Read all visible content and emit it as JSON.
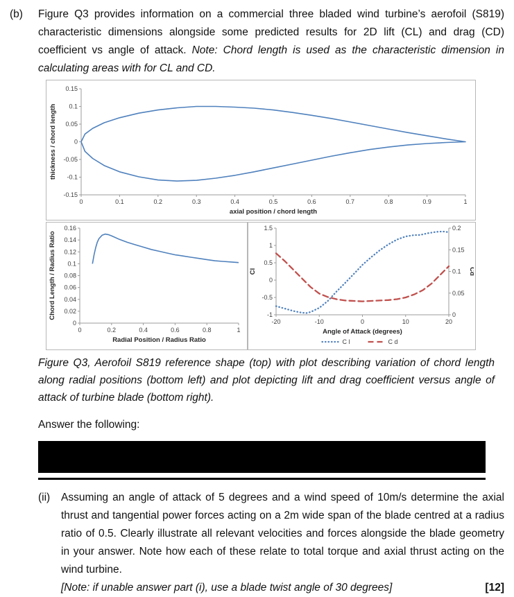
{
  "page": {
    "part_label": "(b)",
    "intro": {
      "normal": "Figure Q3 provides information on a commercial three bladed wind turbine’s aerofoil (S819) characteristic dimensions alongside some predicted results for 2D lift (CL) and drag (CD) coefficient vs angle of attack. ",
      "italic": "Note: Chord length is used as the characteristic dimension in calculating areas with for CL and CD."
    },
    "caption": "Figure Q3, Aerofoil S819 reference shape (top) with plot describing variation of chord length along radial positions (bottom left) and plot depicting lift and drag coefficient versus angle of attack of turbine blade (bottom right).",
    "answer_heading": "Answer the following:",
    "part_ii": {
      "label": "(ii)",
      "body": "Assuming an angle of attack of 5 degrees and a wind speed of 10m/s determine the axial thrust and tangential power forces acting on a 2m wide span of the blade centred at a radius ratio of 0.5. Clearly illustrate all relevant velocities and forces alongside the blade geometry in your answer. Note how each of these relate to total torque and axial thrust acting on the wind turbine.",
      "note_italic": "[Note: if unable answer part (i), use a blade twist angle of 30 degrees]",
      "marks": "[12]"
    }
  },
  "colors": {
    "line_blue": "#4F81BD",
    "line_red": "#C0504D",
    "axis_gray": "#9b9b9b",
    "chart_border": "#b7b7b7"
  },
  "chart_data": [
    {
      "type": "line",
      "title": "",
      "xlabel": "axial position / chord length",
      "ylabel": "thickness / chord length",
      "xlim": [
        0,
        1
      ],
      "ylim": [
        -0.15,
        0.15
      ],
      "xticks": [
        0,
        0.1,
        0.2,
        0.3,
        0.4,
        0.5,
        0.6,
        0.7,
        0.8,
        0.9,
        1
      ],
      "yticks": [
        -0.15,
        -0.1,
        -0.05,
        0,
        0.05,
        0.1,
        0.15
      ],
      "grid": false,
      "series": [
        {
          "name": "S819 aerofoil outline",
          "color": "#4F81BD",
          "style": "solid",
          "x": [
            0,
            0.01,
            0.03,
            0.06,
            0.1,
            0.15,
            0.2,
            0.25,
            0.3,
            0.35,
            0.4,
            0.45,
            0.5,
            0.55,
            0.6,
            0.65,
            0.7,
            0.75,
            0.8,
            0.85,
            0.9,
            0.95,
            1,
            1,
            0.95,
            0.9,
            0.85,
            0.8,
            0.75,
            0.7,
            0.65,
            0.6,
            0.55,
            0.5,
            0.45,
            0.4,
            0.35,
            0.3,
            0.25,
            0.2,
            0.15,
            0.1,
            0.06,
            0.03,
            0.01,
            0
          ],
          "y": [
            0,
            0.022,
            0.038,
            0.054,
            0.068,
            0.081,
            0.09,
            0.096,
            0.1,
            0.1,
            0.098,
            0.095,
            0.09,
            0.083,
            0.075,
            0.066,
            0.056,
            0.046,
            0.036,
            0.026,
            0.017,
            0.008,
            0,
            0,
            -0.002,
            -0.005,
            -0.009,
            -0.015,
            -0.022,
            -0.031,
            -0.041,
            -0.052,
            -0.063,
            -0.074,
            -0.085,
            -0.095,
            -0.103,
            -0.109,
            -0.111,
            -0.108,
            -0.099,
            -0.085,
            -0.067,
            -0.047,
            -0.027,
            0
          ]
        }
      ]
    },
    {
      "type": "line",
      "title": "",
      "xlabel": "Radial Position / Radius Ratio",
      "ylabel": "Chord Length / Radius Ratio",
      "xlim": [
        0,
        1
      ],
      "ylim": [
        0,
        0.16
      ],
      "xticks": [
        0,
        0.2,
        0.4,
        0.6,
        0.8,
        1
      ],
      "yticks": [
        0,
        0.02,
        0.04,
        0.06,
        0.08,
        0.1,
        0.12,
        0.14,
        0.16
      ],
      "grid": false,
      "series": [
        {
          "name": "chord length ratio",
          "color": "#4F81BD",
          "style": "solid",
          "x": [
            0.08,
            0.09,
            0.1,
            0.11,
            0.12,
            0.14,
            0.16,
            0.18,
            0.2,
            0.25,
            0.3,
            0.35,
            0.4,
            0.45,
            0.5,
            0.55,
            0.6,
            0.65,
            0.7,
            0.75,
            0.8,
            0.85,
            0.9,
            0.95,
            1
          ],
          "y": [
            0.1,
            0.115,
            0.127,
            0.136,
            0.142,
            0.148,
            0.15,
            0.149,
            0.147,
            0.141,
            0.136,
            0.132,
            0.128,
            0.124,
            0.121,
            0.118,
            0.115,
            0.113,
            0.111,
            0.109,
            0.107,
            0.105,
            0.104,
            0.103,
            0.102
          ]
        }
      ]
    },
    {
      "type": "line",
      "title": "",
      "xlabel": "Angle of Attack (degrees)",
      "ylabel_left": "Cl",
      "ylabel_right": "Cd",
      "xlim": [
        -20,
        20
      ],
      "ylim_left": [
        -1,
        1.5
      ],
      "ylim_right": [
        0,
        0.2
      ],
      "xticks": [
        -20,
        -10,
        0,
        10,
        20
      ],
      "yticks_left": [
        -1,
        -0.5,
        0,
        0.5,
        1,
        1.5
      ],
      "yticks_right": [
        0,
        0.05,
        0.1,
        0.15,
        0.2
      ],
      "legend": [
        "C l",
        "C d"
      ],
      "grid": false,
      "series": [
        {
          "name": "C l",
          "axis": "left",
          "color": "#4F81BD",
          "style": "dotted",
          "x": [
            -20,
            -18,
            -16,
            -14,
            -13,
            -12,
            -10,
            -8,
            -6,
            -4,
            -2,
            0,
            2,
            4,
            6,
            8,
            10,
            12,
            13,
            14,
            15,
            16,
            17,
            18,
            19,
            20
          ],
          "y": [
            -0.75,
            -0.82,
            -0.89,
            -0.94,
            -0.95,
            -0.92,
            -0.8,
            -0.6,
            -0.33,
            -0.08,
            0.18,
            0.44,
            0.66,
            0.86,
            1.03,
            1.17,
            1.26,
            1.3,
            1.3,
            1.32,
            1.35,
            1.37,
            1.39,
            1.4,
            1.4,
            1.38
          ]
        },
        {
          "name": "C d",
          "axis": "right",
          "color": "#C0504D",
          "style": "dashed",
          "x": [
            -20,
            -18,
            -16,
            -14,
            -12,
            -10,
            -8,
            -6,
            -4,
            -2,
            0,
            2,
            4,
            6,
            8,
            10,
            12,
            14,
            16,
            18,
            20
          ],
          "y": [
            0.142,
            0.124,
            0.104,
            0.084,
            0.064,
            0.049,
            0.041,
            0.036,
            0.033,
            0.032,
            0.031,
            0.032,
            0.033,
            0.034,
            0.036,
            0.04,
            0.047,
            0.057,
            0.072,
            0.092,
            0.112
          ]
        }
      ]
    }
  ]
}
